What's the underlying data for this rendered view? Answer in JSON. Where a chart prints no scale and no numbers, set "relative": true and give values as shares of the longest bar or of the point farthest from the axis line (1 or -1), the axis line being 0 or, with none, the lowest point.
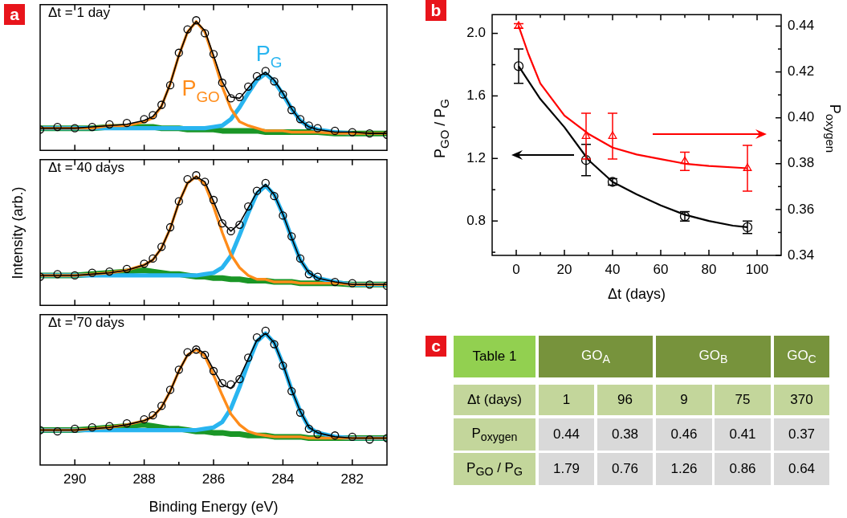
{
  "chart_data": [
    {
      "type": "line",
      "title": "a",
      "annotations": [
        "Δt = 1 day"
      ],
      "relative": true,
      "grid": false,
      "tick_labels": false,
      "xlim": [
        291,
        281
      ],
      "xticks": [
        290,
        {
          "value": 289,
          "label": null
        },
        288,
        {
          "value": 287,
          "label": null
        },
        286,
        {
          "value": 285,
          "label": null
        },
        284,
        {
          "value": 283,
          "label": null
        },
        282
      ],
      "x": [
        291,
        290.5,
        290,
        289.5,
        289,
        288.5,
        288,
        287.75,
        287.5,
        287.25,
        287,
        286.75,
        286.5,
        286.25,
        286,
        285.75,
        285.5,
        285.25,
        285,
        284.75,
        284.5,
        284.25,
        284,
        283.75,
        283.5,
        283.25,
        283,
        282.5,
        282,
        281.5,
        281
      ],
      "series": [
        {
          "type": "scatter",
          "marker": "circle",
          "color": "#000000",
          "values": [
            0.16,
            0.18,
            0.17,
            0.18,
            0.2,
            0.21,
            0.24,
            0.27,
            0.35,
            0.5,
            0.75,
            0.93,
            1.0,
            0.9,
            0.74,
            0.52,
            0.4,
            0.41,
            0.49,
            0.57,
            0.61,
            0.53,
            0.43,
            0.31,
            0.24,
            0.19,
            0.17,
            0.15,
            0.14,
            0.13,
            0.12
          ]
        },
        {
          "type": "line",
          "marker": "none",
          "color": "#1a9626",
          "values": [
            0.17,
            0.17,
            0.17,
            0.17,
            0.18,
            0.18,
            0.18,
            0.18,
            0.17,
            0.17,
            0.17,
            0.16,
            0.16,
            0.16,
            0.16,
            0.15,
            0.15,
            0.15,
            0.15,
            0.15,
            0.14,
            0.14,
            0.14,
            0.14,
            0.14,
            0.14,
            0.14,
            0.13,
            0.13,
            0.13,
            0.13
          ]
        },
        {
          "type": "line",
          "marker": "none",
          "color": "#29b5f0",
          "name": "P$_{G}$",
          "values": [
            0.17,
            0.17,
            0.17,
            0.17,
            0.17,
            0.17,
            0.17,
            0.17,
            0.17,
            0.17,
            0.17,
            0.17,
            0.17,
            0.17,
            0.18,
            0.19,
            0.24,
            0.33,
            0.44,
            0.54,
            0.59,
            0.53,
            0.43,
            0.32,
            0.23,
            0.18,
            0.16,
            0.14,
            0.13,
            null,
            null
          ]
        },
        {
          "type": "line",
          "marker": "none",
          "color": "#ff8c1a",
          "name": "P$_{GO}$",
          "values": [
            0.17,
            0.17,
            0.17,
            0.17,
            0.19,
            0.19,
            0.22,
            0.25,
            0.34,
            0.51,
            0.73,
            0.91,
            0.99,
            0.91,
            0.71,
            0.49,
            0.32,
            0.22,
            0.19,
            0.17,
            0.15,
            0.15,
            0.15,
            0.14,
            0.14,
            0.14,
            0.14,
            0.13,
            0.13,
            0.13,
            0.13
          ]
        },
        {
          "type": "line",
          "marker": "none",
          "color": "#000000",
          "values": [
            0.17,
            0.17,
            0.17,
            0.18,
            0.19,
            0.2,
            0.23,
            0.26,
            0.34,
            0.51,
            0.73,
            0.91,
            0.99,
            0.92,
            0.73,
            0.53,
            0.41,
            0.4,
            0.48,
            0.56,
            0.6,
            0.54,
            0.44,
            0.32,
            0.23,
            0.18,
            0.16,
            0.14,
            0.14,
            0.13,
            0.13
          ]
        }
      ]
    },
    {
      "type": "line",
      "annotations": [
        "Δt = 40 days"
      ],
      "ylabel": "Intensity (arb.)",
      "relative": true,
      "grid": false,
      "tick_labels": false,
      "xlim": [
        291,
        281
      ],
      "xticks": [
        290,
        {
          "value": 289,
          "label": null
        },
        288,
        {
          "value": 287,
          "label": null
        },
        286,
        {
          "value": 285,
          "label": null
        },
        284,
        {
          "value": 283,
          "label": null
        },
        282
      ],
      "x": [
        291,
        290.5,
        290,
        289.5,
        289,
        288.5,
        288,
        287.75,
        287.5,
        287.25,
        287,
        286.75,
        286.5,
        286.25,
        286,
        285.75,
        285.5,
        285.25,
        285,
        284.75,
        284.5,
        284.25,
        284,
        283.75,
        283.5,
        283.25,
        283,
        282.5,
        282,
        281.5,
        281
      ],
      "series": [
        {
          "type": "scatter",
          "marker": "circle",
          "color": "#000000",
          "values": [
            0.22,
            0.24,
            0.23,
            0.25,
            0.26,
            0.28,
            0.32,
            0.36,
            0.45,
            0.6,
            0.8,
            0.97,
            1.0,
            0.95,
            0.81,
            0.63,
            0.57,
            0.62,
            0.76,
            0.88,
            0.94,
            0.84,
            0.69,
            0.53,
            0.36,
            0.24,
            0.22,
            0.18,
            0.17,
            0.16,
            0.15
          ]
        },
        {
          "type": "line",
          "marker": "none",
          "color": "#1a9626",
          "values": [
            0.23,
            0.23,
            0.23,
            0.24,
            0.25,
            0.26,
            0.27,
            0.26,
            0.25,
            0.24,
            0.24,
            0.23,
            0.22,
            0.22,
            0.21,
            0.21,
            0.2,
            0.2,
            0.19,
            0.19,
            0.19,
            0.18,
            0.18,
            0.18,
            0.17,
            0.17,
            0.17,
            0.17,
            0.16,
            0.16,
            0.16
          ]
        },
        {
          "type": "line",
          "marker": "none",
          "color": "#29b5f0",
          "values": [
            0.23,
            0.23,
            0.23,
            0.23,
            0.23,
            0.23,
            0.23,
            0.23,
            0.23,
            0.23,
            0.23,
            0.23,
            0.23,
            0.24,
            0.25,
            0.29,
            0.38,
            0.54,
            0.71,
            0.86,
            0.92,
            0.85,
            0.7,
            0.52,
            0.35,
            0.25,
            0.21,
            0.18,
            0.16,
            0.16,
            0.16
          ]
        },
        {
          "type": "line",
          "marker": "none",
          "color": "#ff8c1a",
          "values": [
            0.23,
            0.23,
            0.23,
            0.24,
            0.25,
            0.27,
            0.31,
            0.35,
            0.44,
            0.59,
            0.79,
            0.94,
            0.99,
            0.93,
            0.76,
            0.56,
            0.39,
            0.29,
            0.23,
            0.2,
            0.2,
            0.18,
            0.18,
            0.18,
            0.17,
            0.17,
            0.17,
            0.17,
            0.16,
            0.16,
            0.16
          ]
        },
        {
          "type": "line",
          "marker": "none",
          "color": "#000000",
          "values": [
            0.23,
            null,
            0.23,
            0.24,
            0.25,
            0.27,
            0.31,
            0.35,
            0.44,
            0.59,
            0.79,
            0.94,
            0.99,
            0.95,
            0.8,
            0.64,
            0.57,
            0.63,
            0.75,
            0.87,
            0.93,
            0.85,
            0.7,
            0.52,
            0.35,
            0.25,
            0.21,
            0.18,
            0.16,
            0.16,
            0.16
          ]
        }
      ]
    },
    {
      "type": "line",
      "annotations": [
        "Δt = 70 days"
      ],
      "xlabel": "Binding Energy (eV)",
      "relative": true,
      "grid": false,
      "tick_labels": "x",
      "xlim": [
        291,
        281
      ],
      "xticks": [
        290,
        {
          "value": 289,
          "label": null
        },
        288,
        {
          "value": 287,
          "label": null
        },
        286,
        {
          "value": 285,
          "label": null
        },
        284,
        {
          "value": 283,
          "label": null
        },
        282
      ],
      "x": [
        291,
        290.5,
        290,
        289.5,
        289,
        288.5,
        288,
        287.75,
        287.5,
        287.25,
        287,
        286.75,
        286.5,
        286.25,
        286,
        285.75,
        285.5,
        285.25,
        285,
        284.75,
        284.5,
        284.25,
        284,
        283.75,
        283.5,
        283.25,
        283,
        282.5,
        282,
        281.5,
        281
      ],
      "series": [
        {
          "type": "scatter",
          "marker": "circle",
          "color": "#000000",
          "values": [
            0.26,
            0.25,
            0.27,
            0.28,
            0.29,
            0.31,
            0.34,
            0.37,
            0.44,
            0.56,
            0.71,
            0.84,
            0.86,
            0.82,
            0.7,
            0.61,
            0.6,
            0.64,
            0.8,
            0.95,
            1.0,
            0.9,
            0.74,
            0.55,
            0.39,
            0.27,
            0.23,
            0.22,
            0.21,
            0.19,
            0.2
          ]
        },
        {
          "type": "line",
          "marker": "none",
          "color": "#1a9626",
          "values": [
            0.26,
            0.26,
            0.26,
            0.27,
            0.28,
            0.29,
            0.3,
            0.29,
            0.28,
            0.27,
            0.27,
            0.26,
            0.25,
            0.25,
            0.24,
            0.24,
            0.23,
            0.23,
            0.22,
            0.22,
            0.22,
            0.21,
            0.21,
            0.21,
            0.21,
            0.2,
            0.2,
            0.2,
            0.2,
            0.2,
            0.2
          ]
        },
        {
          "type": "line",
          "marker": "none",
          "color": "#29b5f0",
          "values": [
            0.26,
            0.26,
            0.26,
            0.26,
            0.26,
            0.26,
            0.26,
            0.26,
            0.26,
            0.26,
            0.26,
            0.26,
            0.26,
            0.27,
            0.28,
            0.32,
            0.42,
            0.58,
            0.76,
            0.92,
            0.98,
            0.91,
            0.75,
            0.56,
            0.4,
            0.28,
            0.24,
            0.21,
            0.2,
            0.2,
            0.2
          ]
        },
        {
          "type": "line",
          "marker": "none",
          "color": "#ff8c1a",
          "values": [
            0.26,
            0.26,
            0.26,
            0.27,
            0.28,
            0.3,
            0.33,
            0.36,
            0.43,
            0.55,
            0.7,
            0.82,
            0.86,
            0.81,
            0.67,
            0.52,
            0.38,
            0.3,
            0.25,
            0.23,
            0.22,
            0.21,
            0.21,
            0.21,
            0.21,
            0.2,
            0.2,
            0.2,
            0.2,
            0.2,
            0.2
          ]
        },
        {
          "type": "line",
          "marker": "none",
          "color": "#000000",
          "values": [
            0.26,
            0.26,
            0.26,
            0.27,
            0.28,
            0.3,
            0.33,
            0.36,
            0.43,
            0.55,
            0.7,
            0.82,
            0.87,
            0.83,
            0.71,
            0.6,
            0.57,
            0.65,
            0.79,
            0.93,
            0.98,
            0.91,
            0.75,
            0.56,
            0.4,
            0.28,
            0.24,
            0.21,
            0.2,
            0.2,
            0.2
          ]
        }
      ]
    },
    {
      "type": "scatter",
      "title": "b",
      "xlabel": "Δt (days)",
      "ylabel": "P$_{GO}$ / P$_{G}$",
      "y2label": "P$_{oxygen}$",
      "grid": false,
      "xlim": [
        -10,
        110
      ],
      "xticks": [
        0,
        {
          "value": 10,
          "label": null
        },
        20,
        {
          "value": 30,
          "label": null
        },
        40,
        {
          "value": 50,
          "label": null
        },
        60,
        {
          "value": 70,
          "label": null
        },
        80,
        {
          "value": 90,
          "label": null
        },
        100
      ],
      "ylim": [
        0.58,
        2.12
      ],
      "yticks": [
        {
          "value": 0.6,
          "label": null
        },
        0.8,
        {
          "value": 1.0,
          "label": null
        },
        1.2,
        {
          "value": 1.4,
          "label": null
        },
        1.6,
        {
          "value": 1.8,
          "label": null
        },
        {
          "value": 2.0,
          "label": "2.0"
        }
      ],
      "y2lim": [
        0.34,
        0.445
      ],
      "y2ticks": [
        0.34,
        {
          "value": 0.35,
          "label": null
        },
        0.36,
        {
          "value": 0.37,
          "label": null
        },
        0.38,
        {
          "value": 0.39,
          "label": null
        },
        {
          "value": 0.4,
          "label": "0.40"
        },
        {
          "value": 0.41,
          "label": null
        },
        0.42,
        {
          "value": 0.43,
          "label": null
        },
        0.44
      ],
      "series": [
        {
          "type": "line",
          "marker": "none",
          "color": "#000000",
          "x": [
            1,
            10,
            20,
            30,
            40,
            50,
            60,
            70,
            80,
            90,
            96
          ],
          "values": [
            1.79,
            1.58,
            1.4,
            1.19,
            1.05,
            0.97,
            0.9,
            0.84,
            0.8,
            0.77,
            0.76
          ]
        },
        {
          "type": "line",
          "marker": "none",
          "color": "#ff0000",
          "axis": "y2",
          "x": [
            1,
            5,
            10,
            20,
            30,
            40,
            50,
            60,
            70,
            80,
            96
          ],
          "values": [
            0.44,
            0.428,
            0.415,
            0.401,
            0.393,
            0.387,
            0.384,
            0.382,
            0.38,
            0.379,
            0.378
          ]
        },
        {
          "type": "scatter",
          "marker": "circle",
          "color": "#000000",
          "x": [
            1,
            29,
            40,
            70,
            96
          ],
          "values": [
            1.79,
            1.19,
            1.05,
            0.83,
            0.76
          ],
          "errors": [
            0.11,
            0.1,
            0.02,
            0.03,
            0.04
          ]
        },
        {
          "type": "scatter",
          "marker": "triangle",
          "color": "#ff0000",
          "axis": "y2",
          "x": [
            1,
            29,
            40,
            70,
            96
          ],
          "values": [
            0.44,
            0.392,
            0.392,
            0.381,
            0.378
          ],
          "errors": [
            0.001,
            0.01,
            0.01,
            0.004,
            0.01
          ]
        }
      ]
    },
    {
      "type": "other",
      "title": "c",
      "annotations": [
        "Table 1",
        "GO$_{A}$",
        "GO$_{B}$",
        "GO$_{C}$",
        "Δt (days)",
        "1",
        "96",
        "9",
        "75",
        "370",
        "P$_{oxygen}$",
        "0.44",
        "0.38",
        "0.46",
        "0.41",
        "0.37",
        "P$_{GO}$ / P$_{G}$",
        "1.79",
        "0.76",
        "1.26",
        "0.86",
        "0.64"
      ]
    }
  ]
}
